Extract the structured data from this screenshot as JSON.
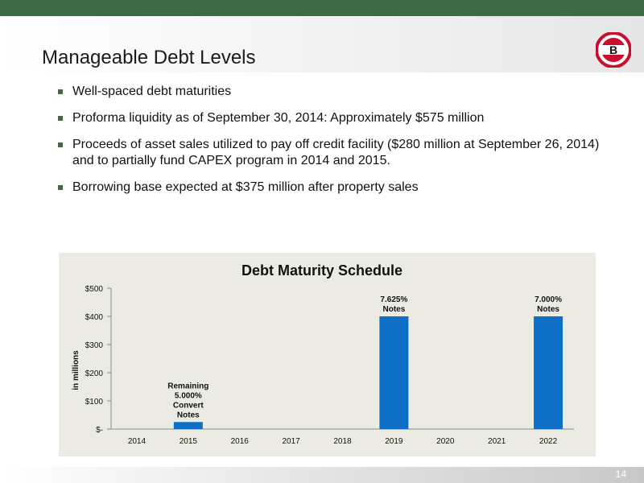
{
  "slide": {
    "title": "Manageable Debt Levels",
    "page_number": "14",
    "logo_letter": "B"
  },
  "bullets": [
    "Well-spaced debt maturities",
    "Proforma liquidity as of September 30, 2014:  Approximately $575 million",
    "Proceeds of asset sales utilized to pay off credit facility ($280 million at September 26, 2014) and to partially fund CAPEX program in 2014 and 2015.",
    "Borrowing base expected at $375 million after property sales"
  ],
  "colors": {
    "brand_green": "#3d6b45",
    "bar_blue": "#0f6fc6",
    "logo_red": "#c8102e",
    "chart_bg": "#ecebe3"
  },
  "chart_data": {
    "type": "bar",
    "title": "Debt Maturity Schedule",
    "xlabel": "",
    "ylabel": "in millions",
    "categories": [
      "2014",
      "2015",
      "2016",
      "2017",
      "2018",
      "2019",
      "2020",
      "2021",
      "2022"
    ],
    "values": [
      0,
      25,
      0,
      0,
      0,
      400,
      0,
      0,
      400
    ],
    "ylim": [
      0,
      500
    ],
    "yticks": [
      0,
      100,
      200,
      300,
      400,
      500
    ],
    "ytick_labels": [
      "$-",
      "$100",
      "$200",
      "$300",
      "$400",
      "$500"
    ],
    "grid": false,
    "legend": "none",
    "annotations": [
      {
        "category": "2015",
        "lines": [
          "Remaining",
          "5.000%",
          "Convert",
          "Notes"
        ]
      },
      {
        "category": "2019",
        "lines": [
          "7.625%",
          "Notes"
        ]
      },
      {
        "category": "2022",
        "lines": [
          "7.000%",
          "Notes"
        ]
      }
    ]
  }
}
